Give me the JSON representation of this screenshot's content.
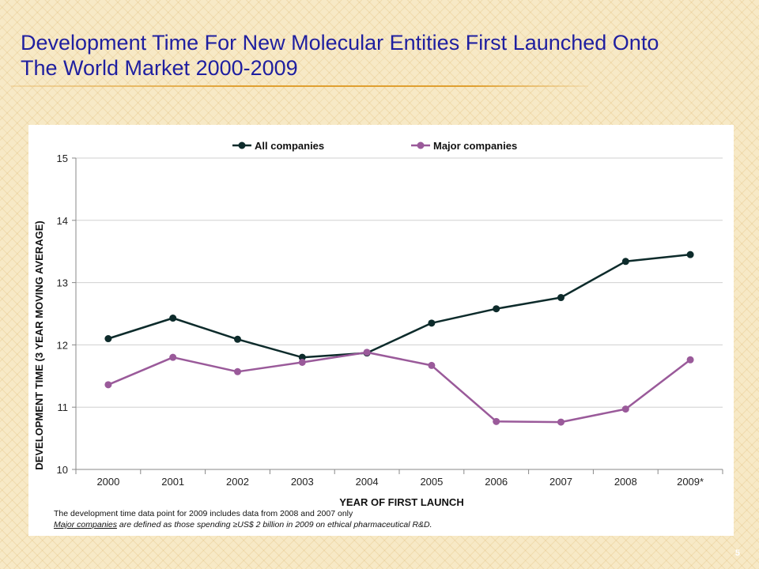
{
  "slide": {
    "title": "Development Time For New Molecular Entities First Launched Onto The World Market 2000-2009",
    "number": "5"
  },
  "footnotes": {
    "line1": "The development time data point for 2009 includes data from 2008 and 2007 only",
    "line2_underlined": "Major companies",
    "line2_rest": " are defined as those spending ≥US$ 2 billion in 2009 on ethical pharmaceutical R&D."
  },
  "chart_data": {
    "type": "line",
    "title": "",
    "xlabel": "YEAR OF FIRST LAUNCH",
    "ylabel": "DEVELOPMENT TIME (3 YEAR MOVING AVERAGE)",
    "categories": [
      "2000",
      "2001",
      "2002",
      "2003",
      "2004",
      "2005",
      "2006",
      "2007",
      "2008",
      "2009*"
    ],
    "ylim": [
      10,
      15
    ],
    "yticks": [
      10,
      11,
      12,
      13,
      14,
      15
    ],
    "grid": "horizontal",
    "legend": "top-center",
    "series": [
      {
        "name": "All companies",
        "color": "#0d2b2b",
        "values": [
          12.1,
          12.43,
          12.09,
          11.8,
          11.87,
          12.35,
          12.58,
          12.76,
          13.34,
          13.45
        ]
      },
      {
        "name": "Major companies",
        "color": "#9a5a9a",
        "values": [
          11.36,
          11.8,
          11.57,
          11.72,
          11.88,
          11.67,
          10.77,
          10.76,
          10.97,
          11.76
        ]
      }
    ]
  }
}
